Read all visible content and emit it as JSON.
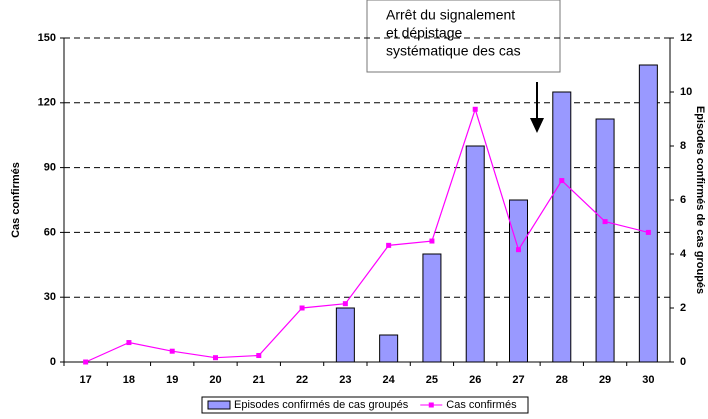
{
  "chart_data": {
    "type": "bar-line",
    "categories": [
      "17",
      "18",
      "19",
      "20",
      "21",
      "22",
      "23",
      "24",
      "25",
      "26",
      "27",
      "28",
      "29",
      "30"
    ],
    "series": [
      {
        "name": "Episodes confirmés de cas groupés",
        "type": "bar",
        "axis": "y2",
        "color": "#9999ff",
        "values": [
          0,
          0,
          0,
          0,
          0,
          0,
          2,
          1,
          4,
          8,
          6,
          10,
          9,
          11
        ]
      },
      {
        "name": "Cas confirmés",
        "type": "line",
        "axis": "y",
        "color": "#ff00ff",
        "values": [
          0,
          9,
          5,
          2,
          3,
          25,
          27,
          54,
          56,
          117,
          52,
          84,
          65,
          60
        ]
      }
    ],
    "ylabel": "Cas confirmés",
    "y2label": "Episodes confirmés de cas groupés",
    "ylim": [
      0,
      150
    ],
    "yticks": [
      0,
      30,
      60,
      90,
      120,
      150
    ],
    "y2lim": [
      0,
      12
    ],
    "y2ticks": [
      0,
      2,
      4,
      6,
      8,
      10,
      12
    ],
    "grid": true,
    "annotation": [
      "Arrêt du signalement",
      "et dépistage",
      "systématique des cas"
    ],
    "legend": "bottom"
  }
}
